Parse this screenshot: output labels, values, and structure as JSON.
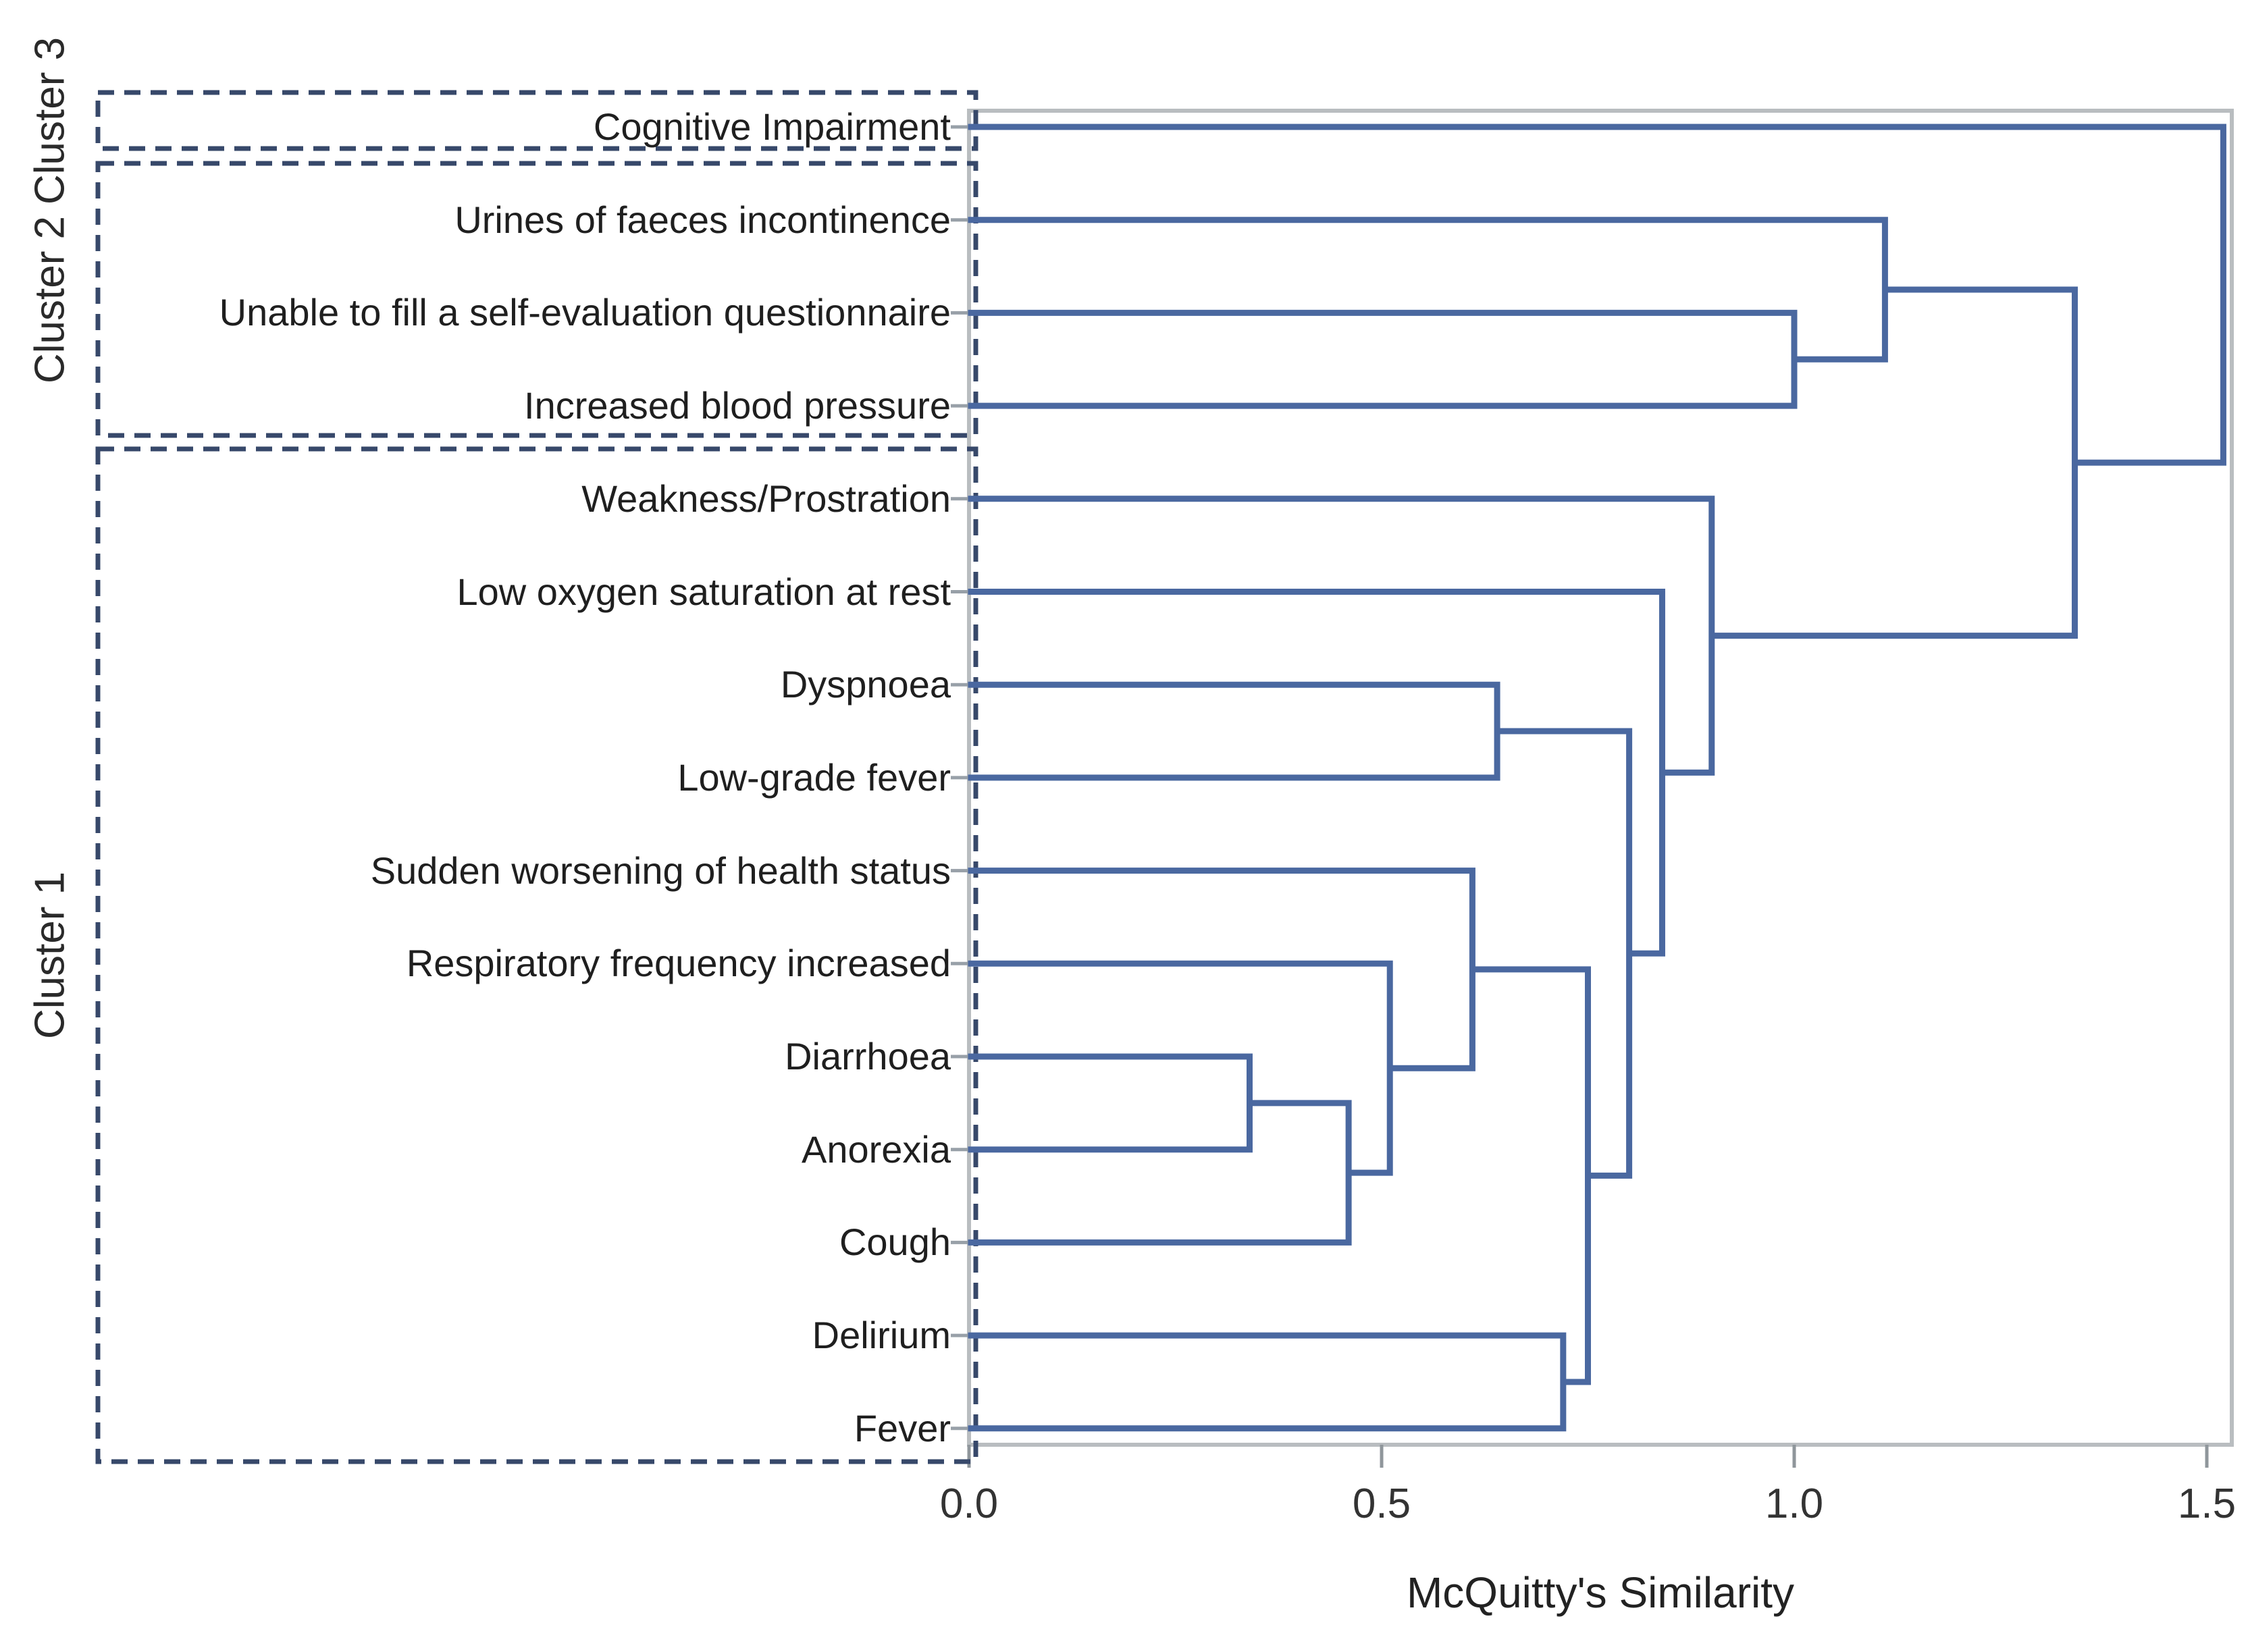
{
  "chart_data": {
    "type": "dendrogram",
    "orientation": "horizontal-leaves-left",
    "xlabel": "McQuitty's Similarity",
    "xticks": [
      "0.0",
      "0.5",
      "1.0",
      "1.5"
    ],
    "xlim": [
      0.0,
      1.55
    ],
    "grid": false,
    "leaves": [
      "Cognitive Impairment",
      "Urines of faeces incontinence",
      "Unable to fill a self-evaluation questionnaire",
      "Increased blood pressure",
      "Weakness/Prostration",
      "Low oxygen saturation at rest",
      "Dyspnoea",
      "Low-grade fever",
      "Sudden worsening of health status",
      "Respiratory frequency increased",
      "Diarrhoea",
      "Anorexia",
      "Cough",
      "Delirium",
      "Fever"
    ],
    "merges": [
      {
        "id": "N1",
        "a": "L10",
        "b": "L11",
        "similarity": 0.34
      },
      {
        "id": "N2",
        "a": "N1",
        "b": "L12",
        "similarity": 0.46
      },
      {
        "id": "N3",
        "a": "L9",
        "b": "N2",
        "similarity": 0.51
      },
      {
        "id": "N4",
        "a": "L8",
        "b": "N3",
        "similarity": 0.61
      },
      {
        "id": "N5",
        "a": "L13",
        "b": "L14",
        "similarity": 0.72
      },
      {
        "id": "N6",
        "a": "N4",
        "b": "N5",
        "similarity": 0.75
      },
      {
        "id": "N7",
        "a": "L6",
        "b": "L7",
        "similarity": 0.64
      },
      {
        "id": "N8",
        "a": "N7",
        "b": "N6",
        "similarity": 0.8
      },
      {
        "id": "N9",
        "a": "L5",
        "b": "N8",
        "similarity": 0.84
      },
      {
        "id": "N10",
        "a": "L4",
        "b": "N9",
        "similarity": 0.9
      },
      {
        "id": "N11",
        "a": "L2",
        "b": "L3",
        "similarity": 1.0
      },
      {
        "id": "N12",
        "a": "L1",
        "b": "N11",
        "similarity": 1.11
      },
      {
        "id": "N13",
        "a": "N12",
        "b": "N10",
        "similarity": 1.34
      },
      {
        "id": "N14",
        "a": "L0",
        "b": "N13",
        "similarity": 1.52
      }
    ],
    "clusters": [
      {
        "label": "Cluster 3",
        "leaf_start": 0,
        "leaf_end": 0
      },
      {
        "label": "Cluster 2",
        "leaf_start": 1,
        "leaf_end": 3
      },
      {
        "label": "Cluster 1",
        "leaf_start": 4,
        "leaf_end": 14
      }
    ],
    "colors": {
      "line": "#4a68a0",
      "cluster_box": "#37486a",
      "frame": "#b9bdc0",
      "tick": "#8f969b",
      "text": "#1f1f1f"
    }
  }
}
